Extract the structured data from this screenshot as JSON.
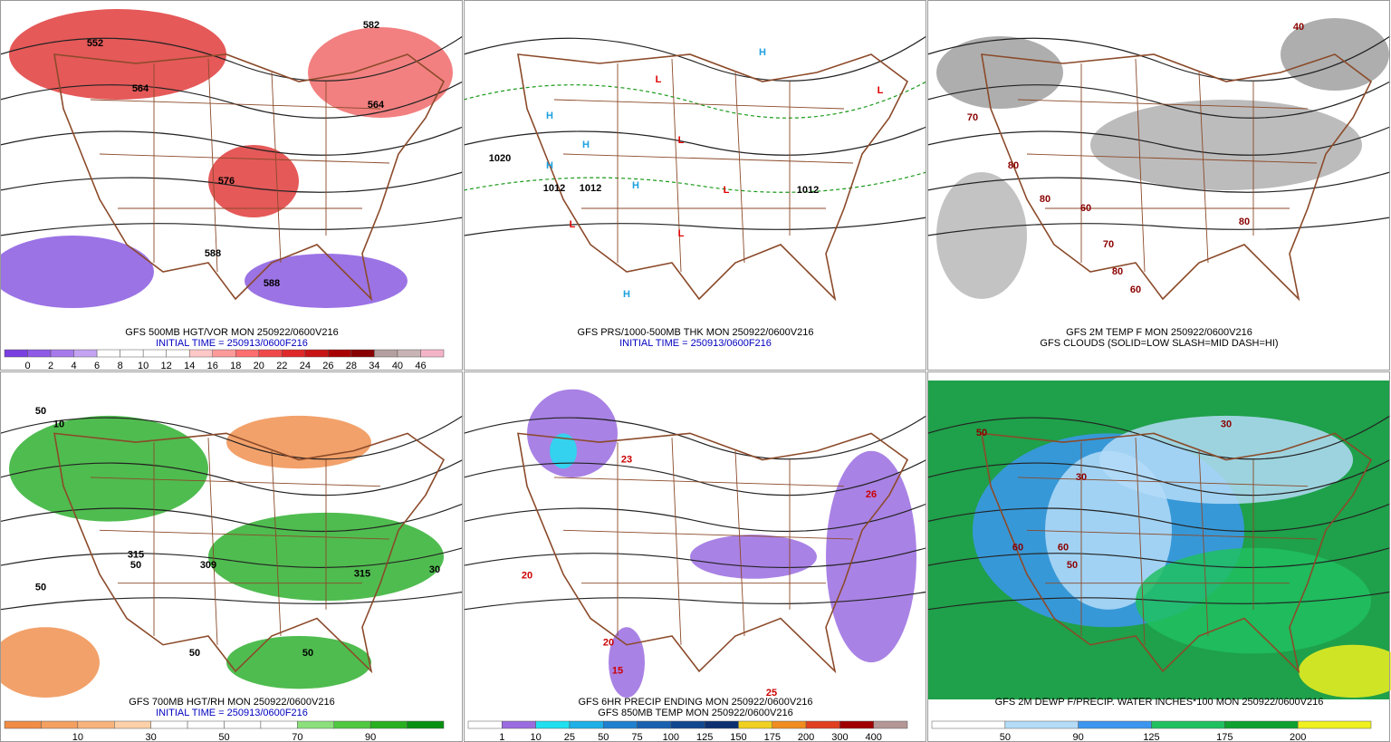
{
  "panels": [
    {
      "captions": [
        "GFS 500MB HGT/VOR MON 250922/0600V216",
        "INITIAL TIME = 250913/0600F216"
      ],
      "legend": {
        "labels": [
          "0",
          "2",
          "4",
          "6",
          "8",
          "10",
          "12",
          "14",
          "16",
          "18",
          "20",
          "22",
          "24",
          "26",
          "28",
          "34",
          "40",
          "46"
        ],
        "colors": [
          "#7a3fe0",
          "#8f5ae6",
          "#a77aec",
          "#c4a3f2",
          "#ffffff",
          "#ffffff",
          "#ffffff",
          "#ffffff",
          "#ffc8c8",
          "#ff9a9a",
          "#ff6e6e",
          "#f04848",
          "#e02828",
          "#c81414",
          "#a80000",
          "#880000",
          "#b4a0a0",
          "#c8b4b4",
          "#f4b4c8"
        ]
      },
      "map_labels": [
        "552",
        "564",
        "576",
        "588",
        "588",
        "582",
        "564"
      ]
    },
    {
      "captions": [
        "GFS PRS/1000-500MB THK MON 250922/0600V216",
        "INITIAL TIME = 250913/0600F216"
      ],
      "map_labels": [
        "1020",
        "1012",
        "1012",
        "1012",
        "L",
        "L",
        "L",
        "L",
        "L",
        "L",
        "H",
        "H",
        "H",
        "H",
        "H",
        "H"
      ]
    },
    {
      "captions": [
        "GFS 2M TEMP F MON 250922/0600V216",
        "GFS CLOUDS (SOLID=LOW SLASH=MID DASH=HI)"
      ],
      "map_labels": [
        "70",
        "80",
        "80",
        "60",
        "70",
        "80",
        "80",
        "40",
        "60"
      ]
    },
    {
      "captions": [
        "GFS 700MB HGT/RH MON 250922/0600V216",
        "INITIAL TIME = 250913/0600F216"
      ],
      "legend": {
        "labels": [
          "10",
          "30",
          "50",
          "70",
          "90"
        ],
        "colors": [
          "#f08c46",
          "#f4a060",
          "#f8b47c",
          "#fcd0a8",
          "#ffffff",
          "#ffffff",
          "#ffffff",
          "#ffffff",
          "#8ce07c",
          "#50c840",
          "#28b020",
          "#089010"
        ]
      },
      "map_labels": [
        "50",
        "10",
        "50",
        "315",
        "50",
        "309",
        "50",
        "315",
        "30",
        "50"
      ]
    },
    {
      "captions": [
        "GFS 6HR PRECIP ENDING MON 250922/0600V216",
        "GFS 850MB TEMP MON 250922/0600V216"
      ],
      "legend": {
        "labels": [
          "1",
          "10",
          "25",
          "50",
          "75",
          "100",
          "125",
          "150",
          "175",
          "200",
          "300",
          "400"
        ],
        "colors": [
          "#ffffff",
          "#9a6ce0",
          "#20e0f0",
          "#20b0e8",
          "#2080d0",
          "#1860b0",
          "#104890",
          "#0c3070",
          "#f0d020",
          "#f08c20",
          "#e04020",
          "#a00000",
          "#b49696"
        ]
      },
      "map_labels": [
        "20",
        "20",
        "26",
        "25",
        "15",
        "23"
      ]
    },
    {
      "captions": [
        "GFS 2M DEWP F/PRECIP. WATER INCHES*100 MON 250922/0600V216"
      ],
      "legend": {
        "labels": [
          "50",
          "90",
          "125",
          "175",
          "200"
        ],
        "colors": [
          "#ffffff",
          "#b4dcf8",
          "#3c96f0",
          "#20c060",
          "#10a030",
          "#f0f020"
        ]
      },
      "map_labels": [
        "50",
        "60",
        "30",
        "30",
        "60",
        "50"
      ]
    }
  ]
}
